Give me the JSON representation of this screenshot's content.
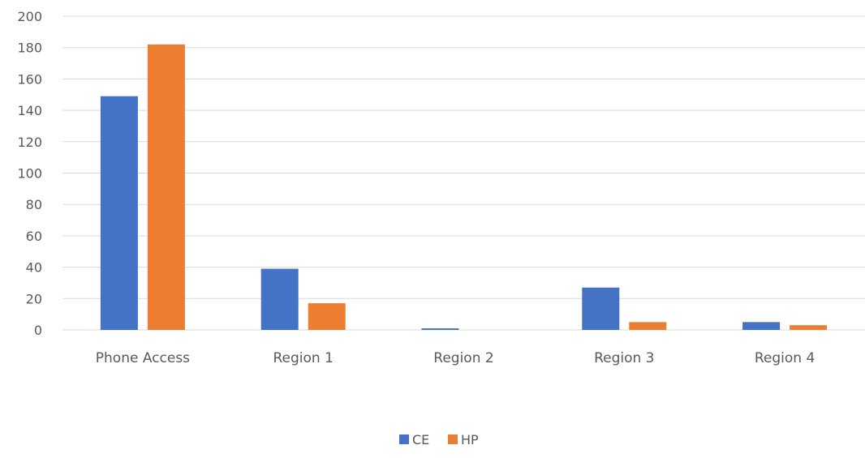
{
  "chart_data": {
    "type": "bar",
    "categories": [
      "Phone Access",
      "Region 1",
      "Region 2",
      "Region 3",
      "Region 4"
    ],
    "series": [
      {
        "name": "CE",
        "color": "#4472C4",
        "values": [
          149,
          39,
          1,
          27,
          5
        ]
      },
      {
        "name": "HP",
        "color": "#ED7D31",
        "values": [
          182,
          17,
          0,
          5,
          3
        ]
      }
    ],
    "title": "",
    "xlabel": "",
    "ylabel": "",
    "ylim": [
      0,
      200
    ],
    "yticks": [
      "0",
      "20",
      "40",
      "60",
      "80",
      "100",
      "120",
      "140",
      "160",
      "180",
      "200"
    ],
    "grid": true,
    "legend_position": "bottom"
  }
}
